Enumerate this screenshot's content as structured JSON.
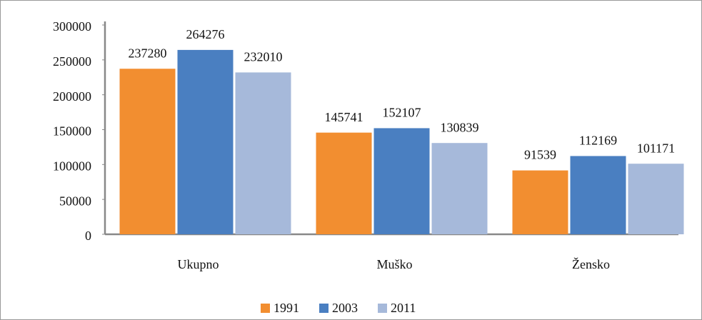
{
  "chart_data": {
    "type": "bar",
    "categories": [
      "Ukupno",
      "Muško",
      "Žensko"
    ],
    "series": [
      {
        "name": "1991",
        "color": "#f28e30",
        "values": [
          237280,
          145741,
          91539
        ]
      },
      {
        "name": "2003",
        "color": "#4a7fc1",
        "values": [
          264276,
          152107,
          112169
        ]
      },
      {
        "name": "2011",
        "color": "#a6b9da",
        "values": [
          232010,
          130839,
          101171
        ]
      }
    ],
    "ylim": [
      0,
      300000
    ],
    "yticks": [
      0,
      50000,
      100000,
      150000,
      200000,
      250000,
      300000
    ],
    "grid": false,
    "legend": "bottom"
  }
}
